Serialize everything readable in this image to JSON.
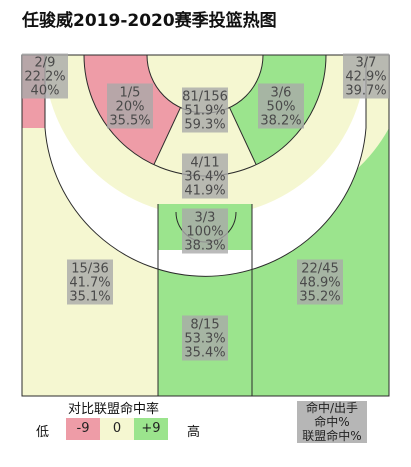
{
  "title": "任骏威2019-2020赛季投篮热图",
  "colors": {
    "hot": "#ee9ca7",
    "neutral": "#f5f7d1",
    "cold": "#9be48d",
    "paint_fill": "#f5f7d1",
    "label_bg": "#a9a9a9"
  },
  "chart_data": {
    "type": "heatmap",
    "title": "任骏威2019-2020赛季投篮热图",
    "zones": [
      {
        "id": "left-corner-three",
        "made_attempted": "2/9",
        "fg_pct": "22.2%",
        "league_pct": "40%",
        "heat": "hot"
      },
      {
        "id": "left-wing-mid",
        "made_attempted": "1/5",
        "fg_pct": "20%",
        "league_pct": "35.5%",
        "heat": "hot"
      },
      {
        "id": "top-key",
        "made_attempted": "81/156",
        "fg_pct": "51.9%",
        "league_pct": "59.3%",
        "heat": "neutral"
      },
      {
        "id": "right-wing-mid",
        "made_attempted": "3/6",
        "fg_pct": "50%",
        "league_pct": "38.2%",
        "heat": "cold"
      },
      {
        "id": "right-corner-three",
        "made_attempted": "3/7",
        "fg_pct": "42.9%",
        "league_pct": "39.7%",
        "heat": "neutral"
      },
      {
        "id": "center-mid",
        "made_attempted": "4/11",
        "fg_pct": "36.4%",
        "league_pct": "41.9%",
        "heat": "neutral"
      },
      {
        "id": "restricted-area",
        "made_attempted": "3/3",
        "fg_pct": "100%",
        "league_pct": "38.3%",
        "heat": "cold"
      },
      {
        "id": "left-wing-three",
        "made_attempted": "15/36",
        "fg_pct": "41.7%",
        "league_pct": "35.1%",
        "heat": "neutral"
      },
      {
        "id": "right-wing-three",
        "made_attempted": "22/45",
        "fg_pct": "48.9%",
        "league_pct": "35.2%",
        "heat": "cold"
      },
      {
        "id": "top-three",
        "made_attempted": "8/15",
        "fg_pct": "53.3%",
        "league_pct": "35.4%",
        "heat": "cold"
      }
    ]
  },
  "legend": {
    "title": "对比联盟命中率",
    "low_label": "低",
    "high_label": "高",
    "scale": [
      "-9",
      "0",
      "+9"
    ],
    "key_lines": [
      "命中/出手",
      "命中%",
      "联盟命中%"
    ]
  }
}
